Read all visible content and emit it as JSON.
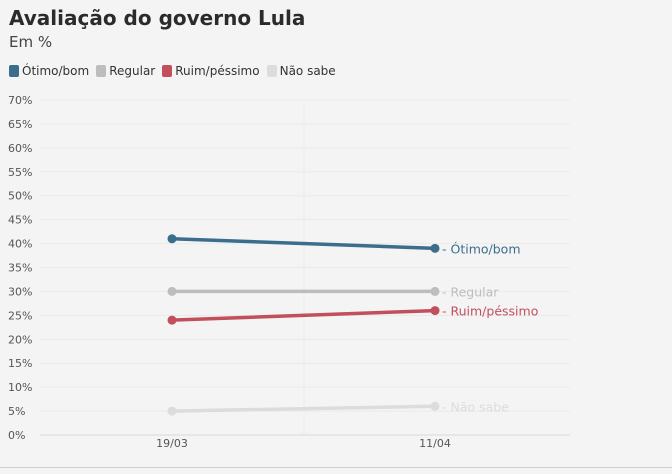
{
  "chart_data": {
    "type": "line",
    "title": "Avaliação do governo Lula",
    "subtitle": "Em %",
    "categories": [
      "19/03",
      "11/04"
    ],
    "ylim": [
      0,
      70
    ],
    "yticks": [
      0,
      5,
      10,
      15,
      20,
      25,
      30,
      35,
      40,
      45,
      50,
      55,
      60,
      65,
      70
    ],
    "ytick_suffix": "%",
    "grid": true,
    "legend_position": "top-left",
    "series": [
      {
        "name": "Ótimo/bom",
        "color": "#3b6e8c",
        "values": [
          41,
          39
        ]
      },
      {
        "name": "Regular",
        "color": "#bdbdbd",
        "values": [
          30,
          30
        ]
      },
      {
        "name": "Ruim/péssimo",
        "color": "#c24f5c",
        "values": [
          24,
          26
        ]
      },
      {
        "name": "Não sabe",
        "color": "#dcdcdc",
        "values": [
          5,
          6
        ]
      }
    ]
  }
}
